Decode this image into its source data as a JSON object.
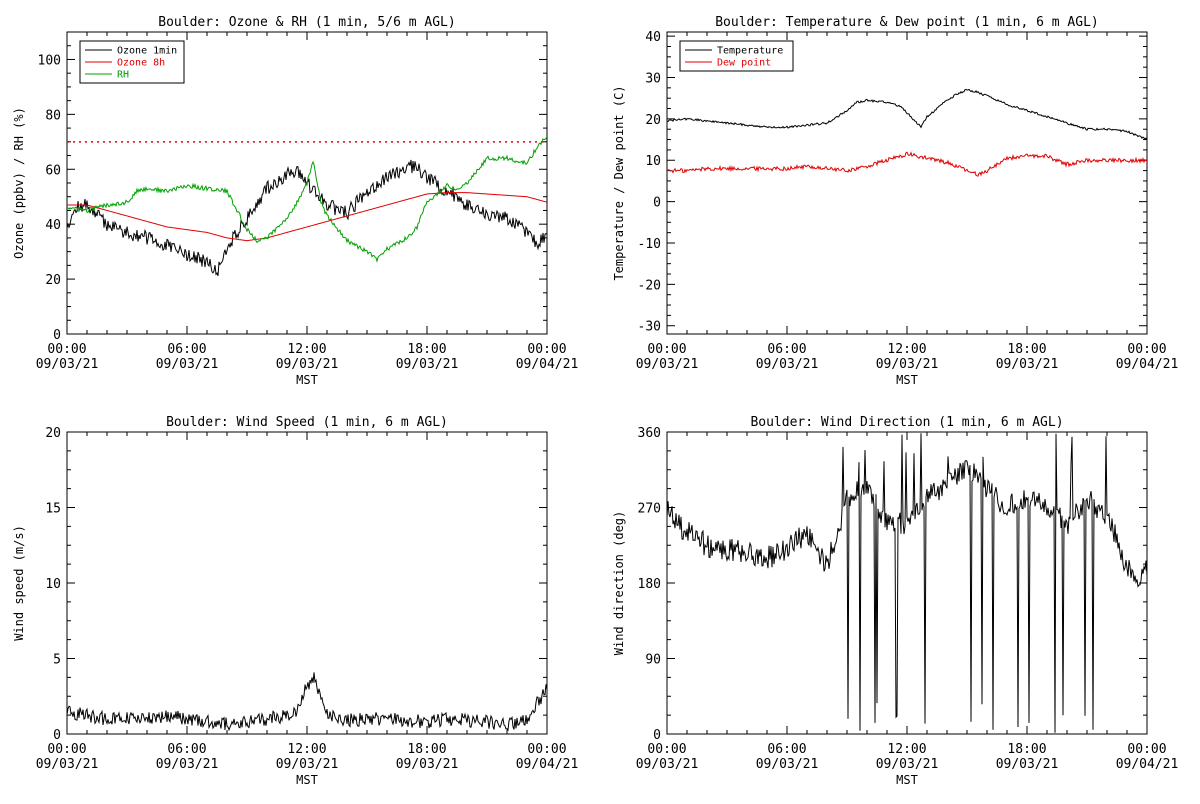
{
  "colors": {
    "black": "#000000",
    "red": "#e00000",
    "green": "#00a000",
    "dotted": "#e00000"
  },
  "x_axis": {
    "tick_hours": [
      0,
      6,
      12,
      18,
      24
    ],
    "tick_labels_time": [
      "00:00",
      "06:00",
      "12:00",
      "18:00",
      "00:00"
    ],
    "tick_labels_date": [
      "09/03/21",
      "09/03/21",
      "09/03/21",
      "09/03/21",
      "09/04/21"
    ],
    "label": "MST"
  },
  "chart_data": [
    {
      "type": "line",
      "title": "Boulder: Ozone & RH (1 min, 5/6 m AGL)",
      "ylabel": "Ozone (ppbv) / RH (%)",
      "xlabel": "MST",
      "xlim_hours": [
        0,
        24
      ],
      "ylim": [
        0,
        110
      ],
      "yticks": [
        0,
        20,
        40,
        60,
        80,
        100
      ],
      "legend_position": "top-left",
      "reference_line": {
        "y": 70,
        "style": "dotted",
        "color": "#e00000"
      },
      "series": [
        {
          "name": "Ozone 1min",
          "color": "#000000",
          "noise": 2.5,
          "seed": 11,
          "x": [
            0,
            0.5,
            1,
            2,
            3,
            4,
            5,
            6,
            7,
            7.5,
            8,
            9,
            10,
            11,
            11.5,
            12,
            13,
            14,
            15,
            16,
            17,
            17.5,
            18,
            19,
            20,
            21,
            22,
            23,
            23.5,
            24
          ],
          "y": [
            40,
            46,
            47,
            40,
            37,
            35,
            32,
            29,
            26,
            22,
            32,
            42,
            53,
            58,
            59,
            55,
            47,
            44,
            52,
            57,
            61,
            61,
            57,
            52,
            47,
            44,
            42,
            37,
            33,
            36
          ]
        },
        {
          "name": "Ozone 8h",
          "color": "#e00000",
          "noise": 0,
          "seed": 0,
          "x": [
            0,
            1,
            2,
            3,
            4,
            5,
            6,
            7,
            8,
            9,
            10,
            11,
            12,
            13,
            14,
            15,
            16,
            17,
            18,
            19,
            20,
            21,
            22,
            23,
            24
          ],
          "y": [
            47,
            47,
            45,
            43,
            41,
            39,
            38,
            37,
            35,
            34,
            35,
            37,
            39,
            41,
            43,
            45,
            47,
            49,
            51,
            51.5,
            51.5,
            51,
            50.5,
            50,
            48
          ]
        },
        {
          "name": "RH",
          "color": "#00a000",
          "noise": 0.8,
          "seed": 23,
          "x": [
            0,
            1,
            2,
            3,
            3.5,
            4,
            5,
            6,
            7,
            8,
            9,
            9.5,
            10,
            11,
            11.5,
            12,
            12.3,
            12.7,
            13,
            14,
            15,
            15.5,
            16,
            17,
            17.5,
            18,
            19,
            19.5,
            20,
            21,
            22,
            23,
            23.5,
            24
          ],
          "y": [
            46,
            45,
            47,
            48,
            52,
            53,
            52,
            54,
            53,
            52,
            38,
            34,
            35,
            42,
            48,
            55,
            63,
            48,
            43,
            34,
            30,
            27,
            31,
            35,
            39,
            48,
            54,
            53,
            55,
            64,
            64,
            62,
            68,
            72
          ]
        }
      ]
    },
    {
      "type": "line",
      "title": "Boulder: Temperature & Dew point (1 min, 6 m AGL)",
      "ylabel": "Temperature / Dew point (C)",
      "xlabel": "MST",
      "xlim_hours": [
        0,
        24
      ],
      "ylim": [
        -32,
        41
      ],
      "yticks": [
        -30,
        -20,
        -10,
        0,
        10,
        20,
        30,
        40
      ],
      "legend_position": "top-left",
      "series": [
        {
          "name": "Temperature",
          "color": "#000000",
          "noise": 0.25,
          "seed": 31,
          "x": [
            0,
            1,
            2,
            3,
            4,
            5,
            6,
            7,
            8,
            9,
            9.5,
            10,
            11,
            11.7,
            12.3,
            12.7,
            13,
            14,
            14.5,
            15,
            15.5,
            16,
            17,
            18,
            19,
            20,
            21,
            22,
            23,
            24
          ],
          "y": [
            19.5,
            20,
            19.5,
            19,
            18.5,
            18,
            18,
            18.5,
            19,
            22,
            24,
            24.5,
            24,
            23,
            20,
            18,
            20.5,
            24.5,
            26,
            27,
            26.5,
            25.5,
            23.5,
            22,
            20.5,
            19,
            17.5,
            17.5,
            17,
            15
          ]
        },
        {
          "name": "Dew point",
          "color": "#e00000",
          "noise": 0.5,
          "seed": 47,
          "x": [
            0,
            1,
            2,
            3,
            4,
            5,
            6,
            7,
            8,
            9,
            10,
            11,
            12,
            12.5,
            13,
            14,
            15,
            15.5,
            16,
            17,
            18,
            19,
            20,
            21,
            22,
            23,
            24
          ],
          "y": [
            7.5,
            7.5,
            8,
            8,
            8,
            8,
            8,
            8.5,
            8,
            7.5,
            8.5,
            10,
            11.5,
            11,
            10.5,
            9.5,
            7.5,
            6.5,
            7.5,
            10.5,
            11,
            11,
            9,
            10,
            10,
            10,
            10
          ]
        }
      ]
    },
    {
      "type": "line",
      "title": "Boulder: Wind Speed (1 min, 6 m AGL)",
      "ylabel": "Wind speed (m/s)",
      "xlabel": "MST",
      "xlim_hours": [
        0,
        24
      ],
      "ylim": [
        0,
        20
      ],
      "yticks": [
        0,
        5,
        10,
        15,
        20
      ],
      "series": [
        {
          "name": "",
          "color": "#000000",
          "noise": 0.45,
          "seed": 59,
          "min": 0,
          "x": [
            0,
            1,
            2,
            3,
            4,
            5,
            6,
            7,
            8,
            9,
            10,
            11,
            11.5,
            12,
            12.3,
            12.7,
            13,
            14,
            15,
            16,
            17,
            18,
            19,
            20,
            21,
            22,
            23,
            23.5,
            24
          ],
          "y": [
            1.5,
            1.2,
            1,
            1,
            1,
            1.2,
            1,
            0.8,
            0.7,
            0.8,
            1,
            1.2,
            1.5,
            3.2,
            3.8,
            2.5,
            1.2,
            0.9,
            1,
            1,
            0.9,
            0.8,
            1,
            0.9,
            0.8,
            0.6,
            1,
            2,
            3
          ]
        }
      ]
    },
    {
      "type": "line",
      "title": "Boulder: Wind Direction (1 min, 6 m AGL)",
      "ylabel": "Wind direction (deg)",
      "xlabel": "MST",
      "xlim_hours": [
        0,
        24
      ],
      "ylim": [
        0,
        360
      ],
      "yticks": [
        0,
        90,
        180,
        270,
        360
      ],
      "series": [
        {
          "name": "",
          "color": "#000000",
          "noise": 14,
          "seed": 73,
          "min": 0,
          "max": 360,
          "wrap_region_hours": [
            8.3,
            22.6
          ],
          "x": [
            0,
            1,
            2,
            3,
            4,
            5,
            6,
            7,
            8,
            9,
            10,
            11,
            12,
            13,
            14,
            15,
            16,
            17,
            18,
            19,
            20,
            21,
            22,
            23,
            23.5,
            24
          ],
          "y": [
            265,
            240,
            225,
            220,
            215,
            210,
            220,
            240,
            200,
            280,
            300,
            250,
            250,
            280,
            300,
            320,
            290,
            270,
            280,
            270,
            250,
            280,
            260,
            200,
            175,
            195
          ]
        }
      ]
    }
  ]
}
